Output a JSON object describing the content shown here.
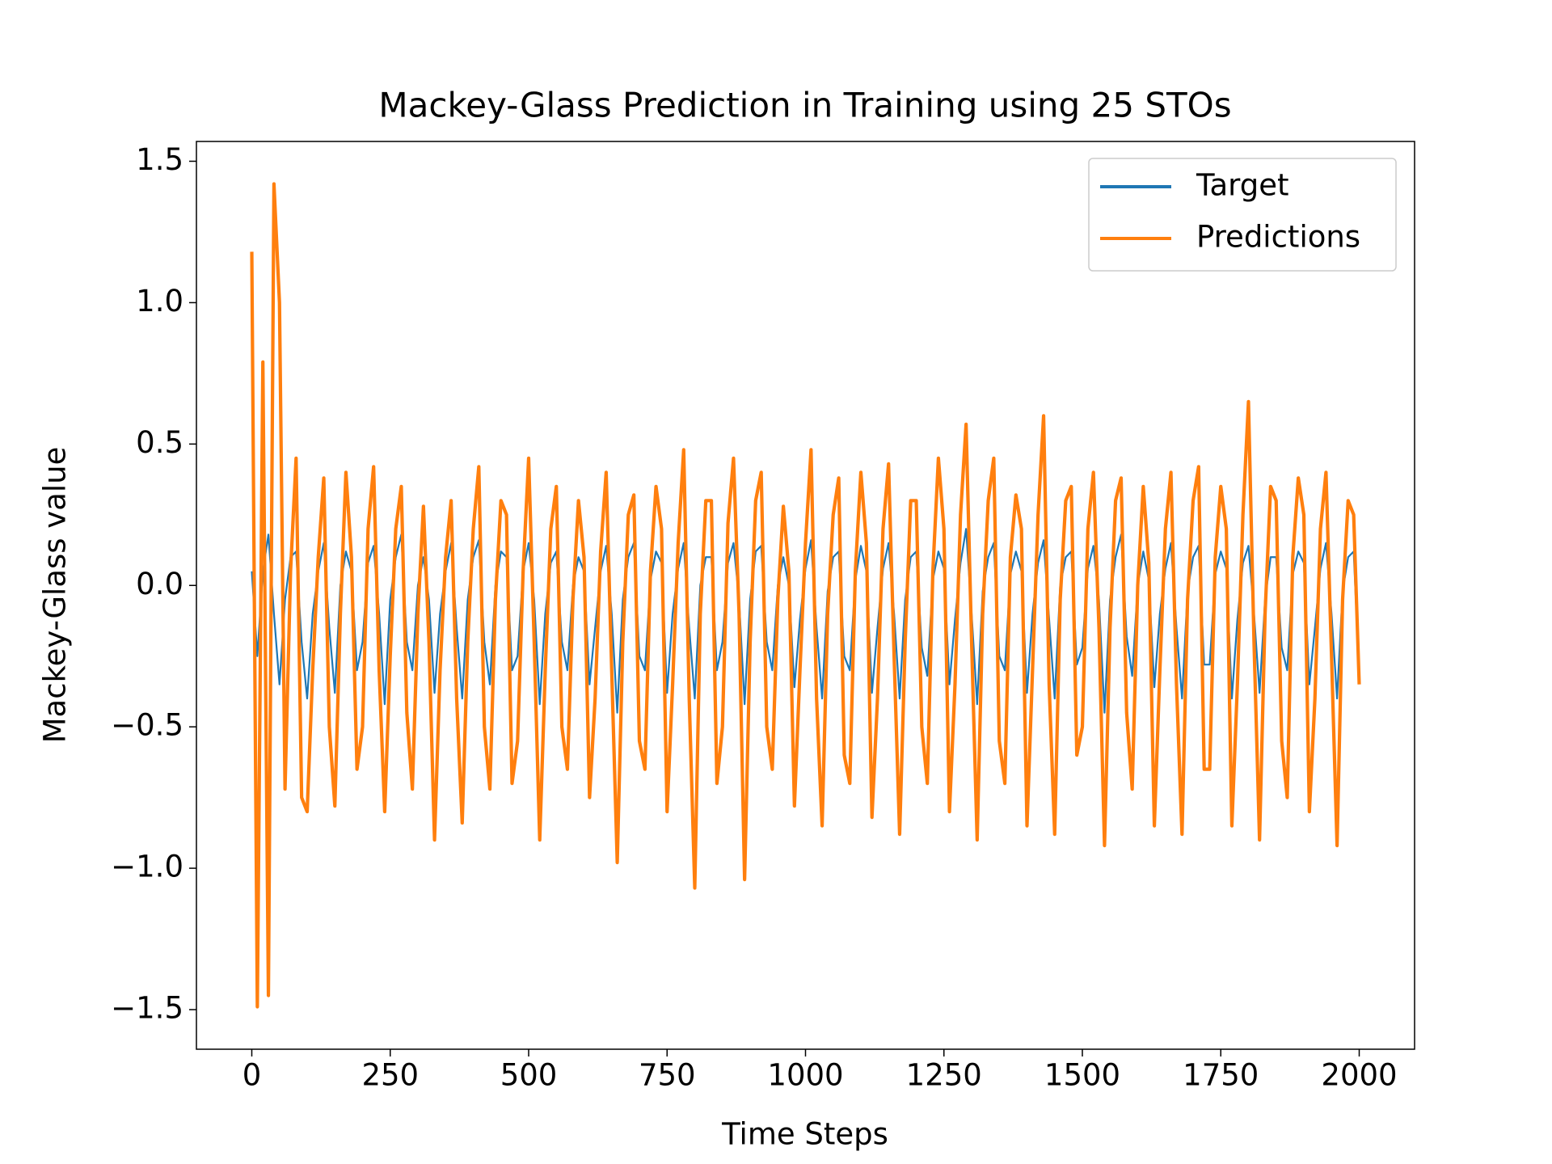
{
  "chart_data": {
    "type": "line",
    "title": "Mackey-Glass Prediction in Training using 25 STOs",
    "x_label": "Time Steps",
    "y_label": "Mackey-Glass value",
    "xlim": [
      -100,
      2100
    ],
    "ylim": [
      -1.64,
      1.57
    ],
    "xticks": [
      0,
      250,
      500,
      750,
      1000,
      1250,
      1500,
      1750,
      2000
    ],
    "yticks": [
      {
        "value": -1.5,
        "label": "−1.5"
      },
      {
        "value": -1,
        "label": "−1.0"
      },
      {
        "value": -0.5,
        "label": "−0.5"
      },
      {
        "value": 0,
        "label": "0.0"
      },
      0.5,
      {
        "value": 1,
        "label": "1.0"
      },
      1.5
    ],
    "legend": "upper right",
    "grid": false,
    "x": [
      0,
      10,
      20,
      30,
      40,
      50,
      60,
      70,
      80,
      90,
      100,
      110,
      120,
      130,
      140,
      150,
      160,
      170,
      180,
      190,
      200,
      210,
      220,
      230,
      240,
      250,
      260,
      270,
      280,
      290,
      300,
      310,
      320,
      330,
      340,
      350,
      360,
      370,
      380,
      390,
      400,
      410,
      420,
      430,
      440,
      450,
      460,
      470,
      480,
      490,
      500,
      510,
      520,
      530,
      540,
      550,
      560,
      570,
      580,
      590,
      600,
      610,
      620,
      630,
      640,
      650,
      660,
      670,
      680,
      690,
      700,
      710,
      720,
      730,
      740,
      750,
      760,
      770,
      780,
      790,
      800,
      810,
      820,
      830,
      840,
      850,
      860,
      870,
      880,
      890,
      900,
      910,
      920,
      930,
      940,
      950,
      960,
      970,
      980,
      990,
      1000,
      1010,
      1020,
      1030,
      1040,
      1050,
      1060,
      1070,
      1080,
      1090,
      1100,
      1110,
      1120,
      1130,
      1140,
      1150,
      1160,
      1170,
      1180,
      1190,
      1200,
      1210,
      1220,
      1230,
      1240,
      1250,
      1260,
      1270,
      1280,
      1290,
      1300,
      1310,
      1320,
      1330,
      1340,
      1350,
      1360,
      1370,
      1380,
      1390,
      1400,
      1410,
      1420,
      1430,
      1440,
      1450,
      1460,
      1470,
      1480,
      1490,
      1500,
      1510,
      1520,
      1530,
      1540,
      1550,
      1560,
      1570,
      1580,
      1590,
      1600,
      1610,
      1620,
      1630,
      1640,
      1650,
      1660,
      1670,
      1680,
      1690,
      1700,
      1710,
      1720,
      1730,
      1740,
      1750,
      1760,
      1770,
      1780,
      1790,
      1800,
      1810,
      1820,
      1830,
      1840,
      1850,
      1860,
      1870,
      1880,
      1890,
      1900,
      1910,
      1920,
      1930,
      1940,
      1950,
      1960,
      1970,
      1980,
      1990,
      2000
    ],
    "series": [
      {
        "name": "Target",
        "color": "#1f77b4",
        "values": [
          0.05,
          -0.25,
          0.05,
          0.18,
          -0.1,
          -0.35,
          -0.05,
          0.1,
          0.12,
          -0.2,
          -0.4,
          -0.1,
          0.05,
          0.15,
          -0.15,
          -0.38,
          0.0,
          0.12,
          0.05,
          -0.3,
          -0.2,
          0.08,
          0.14,
          -0.1,
          -0.42,
          -0.05,
          0.1,
          0.18,
          -0.2,
          -0.3,
          0.0,
          0.1,
          -0.05,
          -0.38,
          -0.1,
          0.05,
          0.15,
          -0.15,
          -0.4,
          -0.05,
          0.1,
          0.16,
          -0.2,
          -0.35,
          0.0,
          0.12,
          0.1,
          -0.3,
          -0.25,
          0.05,
          0.15,
          -0.05,
          -0.42,
          -0.1,
          0.08,
          0.12,
          -0.2,
          -0.3,
          0.0,
          0.1,
          0.05,
          -0.35,
          -0.15,
          0.05,
          0.14,
          -0.1,
          -0.45,
          -0.05,
          0.1,
          0.15,
          -0.25,
          -0.3,
          0.02,
          0.12,
          0.08,
          -0.38,
          -0.1,
          0.06,
          0.15,
          -0.15,
          -0.4,
          0.0,
          0.1,
          0.1,
          -0.3,
          -0.2,
          0.08,
          0.15,
          -0.05,
          -0.42,
          -0.05,
          0.12,
          0.14,
          -0.2,
          -0.3,
          0.0,
          0.1,
          0.0,
          -0.36,
          -0.12,
          0.06,
          0.16,
          -0.15,
          -0.4,
          -0.02,
          0.1,
          0.12,
          -0.25,
          -0.3,
          0.02,
          0.14,
          0.05,
          -0.38,
          -0.15,
          0.06,
          0.15,
          -0.1,
          -0.4,
          -0.05,
          0.1,
          0.12,
          -0.22,
          -0.32,
          0.02,
          0.12,
          0.06,
          -0.35,
          -0.12,
          0.08,
          0.2,
          -0.1,
          -0.42,
          -0.02,
          0.1,
          0.15,
          -0.25,
          -0.3,
          0.04,
          0.12,
          0.05,
          -0.38,
          -0.1,
          0.08,
          0.16,
          -0.12,
          -0.4,
          0.0,
          0.1,
          0.12,
          -0.28,
          -0.22,
          0.06,
          0.14,
          -0.05,
          -0.45,
          -0.05,
          0.1,
          0.18,
          -0.18,
          -0.32,
          0.0,
          0.12,
          0.02,
          -0.36,
          -0.1,
          0.06,
          0.15,
          -0.15,
          -0.4,
          -0.02,
          0.1,
          0.14,
          -0.28,
          -0.28,
          0.04,
          0.12,
          0.06,
          -0.4,
          -0.12,
          0.08,
          0.14,
          -0.1,
          -0.38,
          -0.05,
          0.1,
          0.1,
          -0.22,
          -0.3,
          0.04,
          0.12,
          0.08,
          -0.35,
          -0.15,
          0.06,
          0.15,
          -0.1,
          -0.4,
          -0.02,
          0.1,
          0.12,
          -0.32
        ]
      },
      {
        "name": "Predictions",
        "color": "#ff7f0e",
        "values": [
          1.18,
          -1.49,
          0.79,
          -1.45,
          1.42,
          1.0,
          -0.72,
          0.05,
          0.45,
          -0.75,
          -0.8,
          -0.3,
          0.1,
          0.38,
          -0.5,
          -0.78,
          -0.1,
          0.4,
          0.1,
          -0.65,
          -0.5,
          0.2,
          0.42,
          -0.3,
          -0.8,
          -0.25,
          0.2,
          0.35,
          -0.45,
          -0.72,
          -0.1,
          0.28,
          -0.2,
          -0.9,
          -0.3,
          0.1,
          0.3,
          -0.4,
          -0.84,
          -0.2,
          0.2,
          0.42,
          -0.5,
          -0.72,
          -0.05,
          0.3,
          0.25,
          -0.7,
          -0.55,
          0.05,
          0.45,
          -0.2,
          -0.9,
          -0.3,
          0.2,
          0.35,
          -0.5,
          -0.65,
          -0.05,
          0.3,
          0.1,
          -0.75,
          -0.4,
          0.12,
          0.4,
          -0.3,
          -0.98,
          -0.2,
          0.25,
          0.32,
          -0.55,
          -0.65,
          0.05,
          0.35,
          0.2,
          -0.8,
          -0.35,
          0.15,
          0.48,
          -0.4,
          -1.07,
          -0.1,
          0.3,
          0.3,
          -0.7,
          -0.5,
          0.22,
          0.45,
          -0.1,
          -1.04,
          -0.2,
          0.3,
          0.4,
          -0.5,
          -0.65,
          -0.05,
          0.28,
          0.05,
          -0.78,
          -0.3,
          0.15,
          0.48,
          -0.4,
          -0.85,
          -0.1,
          0.25,
          0.38,
          -0.6,
          -0.7,
          0.05,
          0.4,
          0.15,
          -0.82,
          -0.4,
          0.2,
          0.43,
          -0.25,
          -0.88,
          -0.2,
          0.3,
          0.3,
          -0.5,
          -0.7,
          0.05,
          0.45,
          0.2,
          -0.8,
          -0.35,
          0.25,
          0.57,
          -0.2,
          -0.9,
          -0.1,
          0.3,
          0.45,
          -0.55,
          -0.7,
          0.1,
          0.32,
          0.2,
          -0.85,
          -0.3,
          0.25,
          0.6,
          -0.35,
          -0.88,
          -0.05,
          0.3,
          0.35,
          -0.6,
          -0.5,
          0.2,
          0.4,
          -0.15,
          -0.92,
          -0.15,
          0.3,
          0.38,
          -0.45,
          -0.72,
          0.0,
          0.35,
          0.08,
          -0.85,
          -0.3,
          0.2,
          0.4,
          -0.35,
          -0.88,
          -0.05,
          0.3,
          0.42,
          -0.65,
          -0.65,
          0.1,
          0.35,
          0.2,
          -0.85,
          -0.35,
          0.25,
          0.65,
          -0.2,
          -0.9,
          -0.1,
          0.35,
          0.3,
          -0.55,
          -0.75,
          0.1,
          0.38,
          0.25,
          -0.8,
          -0.4,
          0.2,
          0.4,
          -0.25,
          -0.92,
          -0.05,
          0.3,
          0.25,
          -0.35
        ]
      }
    ]
  }
}
